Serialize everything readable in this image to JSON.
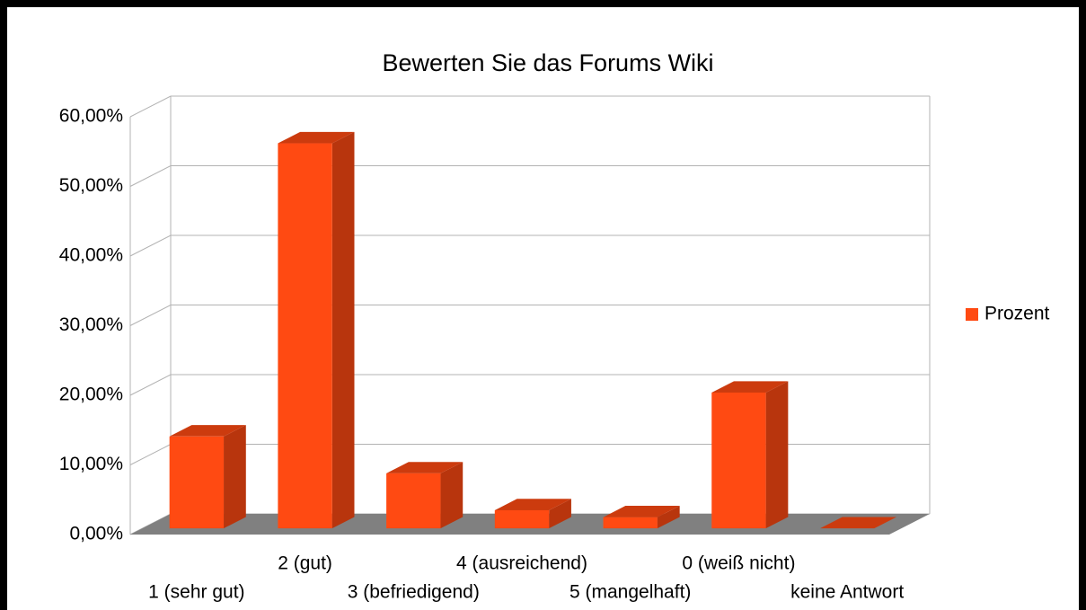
{
  "chart_data": {
    "type": "bar3d",
    "title": "Bewerten Sie das Forums Wiki",
    "categories": [
      "1 (sehr gut)",
      "2 (gut)",
      "3 (befriedigend)",
      "4 (ausreichend)",
      "5 (mangelhaft)",
      "0 (weiß nicht)",
      "keine Antwort"
    ],
    "series": [
      {
        "name": "Prozent",
        "color": "#ff4a12",
        "values": [
          13.2,
          55.3,
          7.9,
          2.6,
          1.6,
          19.5,
          0
        ]
      }
    ],
    "ylim": [
      0,
      60
    ],
    "yticks": [
      {
        "value": 0,
        "label": "0,00%"
      },
      {
        "value": 10,
        "label": "10,00%"
      },
      {
        "value": 20,
        "label": "20,00%"
      },
      {
        "value": 30,
        "label": "30,00%"
      },
      {
        "value": 40,
        "label": "40,00%"
      },
      {
        "value": 50,
        "label": "50,00%"
      },
      {
        "value": 60,
        "label": "60,00%"
      }
    ],
    "grid": true,
    "legend": "right"
  }
}
